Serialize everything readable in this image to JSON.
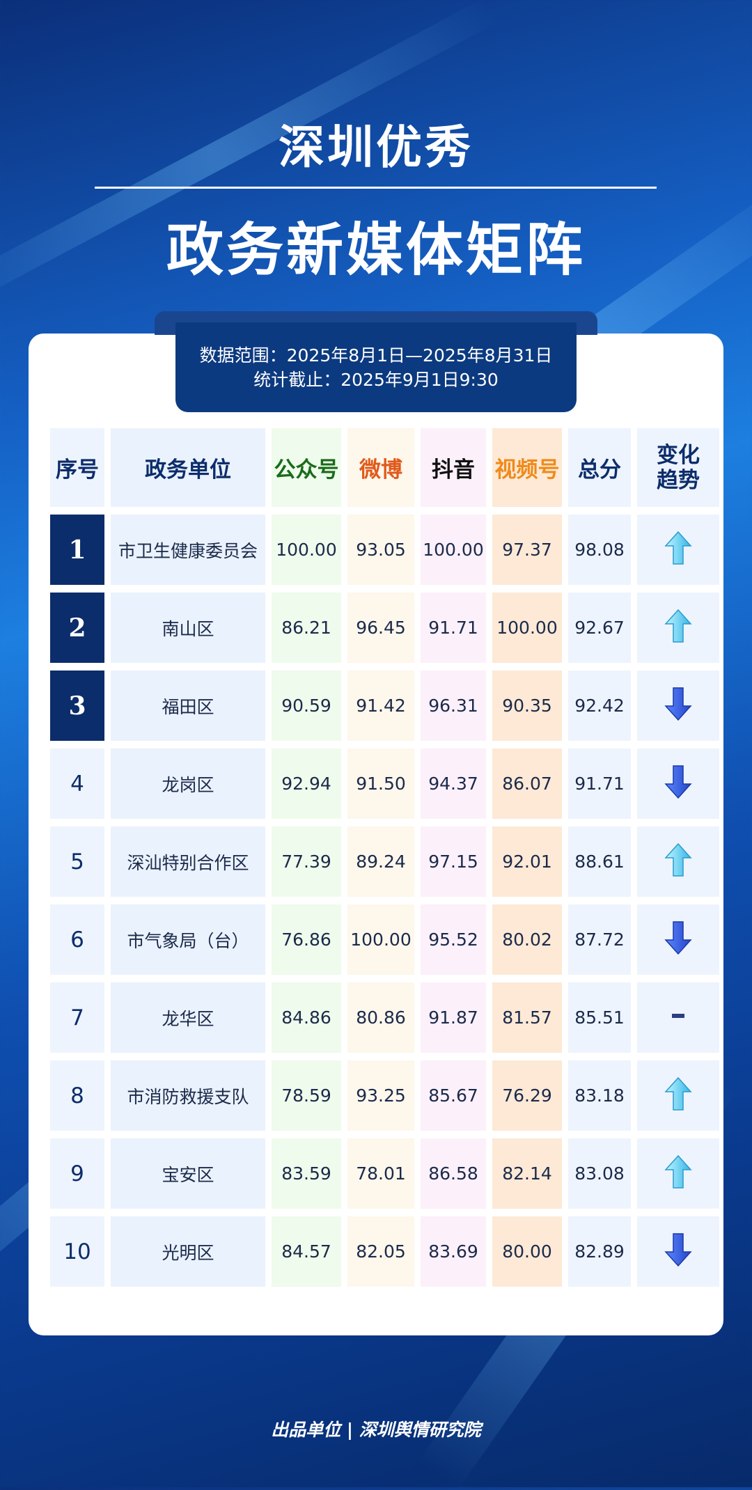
{
  "header": {
    "title": "深圳优秀",
    "subtitle": "政务新媒体矩阵"
  },
  "info": {
    "range": "数据范围：2025年8月1日—2025年8月31日",
    "cutoff": "统计截止：2025年9月1日9:30"
  },
  "table": {
    "columns": [
      "序号",
      "政务单位",
      "公众号",
      "微博",
      "抖音",
      "视频号",
      "总分",
      "变化趋势"
    ],
    "rows": [
      [
        "1",
        "市卫生健康委员会",
        "100.00",
        "93.05",
        "100.00",
        "97.37",
        "98.08"
      ],
      [
        "2",
        "南山区",
        "86.21",
        "96.45",
        "91.71",
        "100.00",
        "92.67"
      ],
      [
        "3",
        "福田区",
        "90.59",
        "91.42",
        "96.31",
        "90.35",
        "92.42"
      ],
      [
        "4",
        "龙岗区",
        "92.94",
        "91.50",
        "94.37",
        "86.07",
        "91.71"
      ],
      [
        "5",
        "深汕特别合作区",
        "77.39",
        "89.24",
        "97.15",
        "92.01",
        "88.61"
      ],
      [
        "6",
        "市气象局（台）",
        "76.86",
        "100.00",
        "95.52",
        "80.02",
        "87.72"
      ],
      [
        "7",
        "龙华区",
        "84.86",
        "80.86",
        "91.87",
        "81.57",
        "85.51"
      ],
      [
        "8",
        "市消防救援支队",
        "78.59",
        "93.25",
        "85.67",
        "76.29",
        "83.18"
      ],
      [
        "9",
        "宝安区",
        "83.59",
        "78.01",
        "86.58",
        "82.14",
        "83.08"
      ],
      [
        "10",
        "光明区",
        "84.57",
        "82.05",
        "83.69",
        "80.00",
        "82.89"
      ]
    ]
  },
  "footer": "出品单位 | 深圳舆情研究院"
}
